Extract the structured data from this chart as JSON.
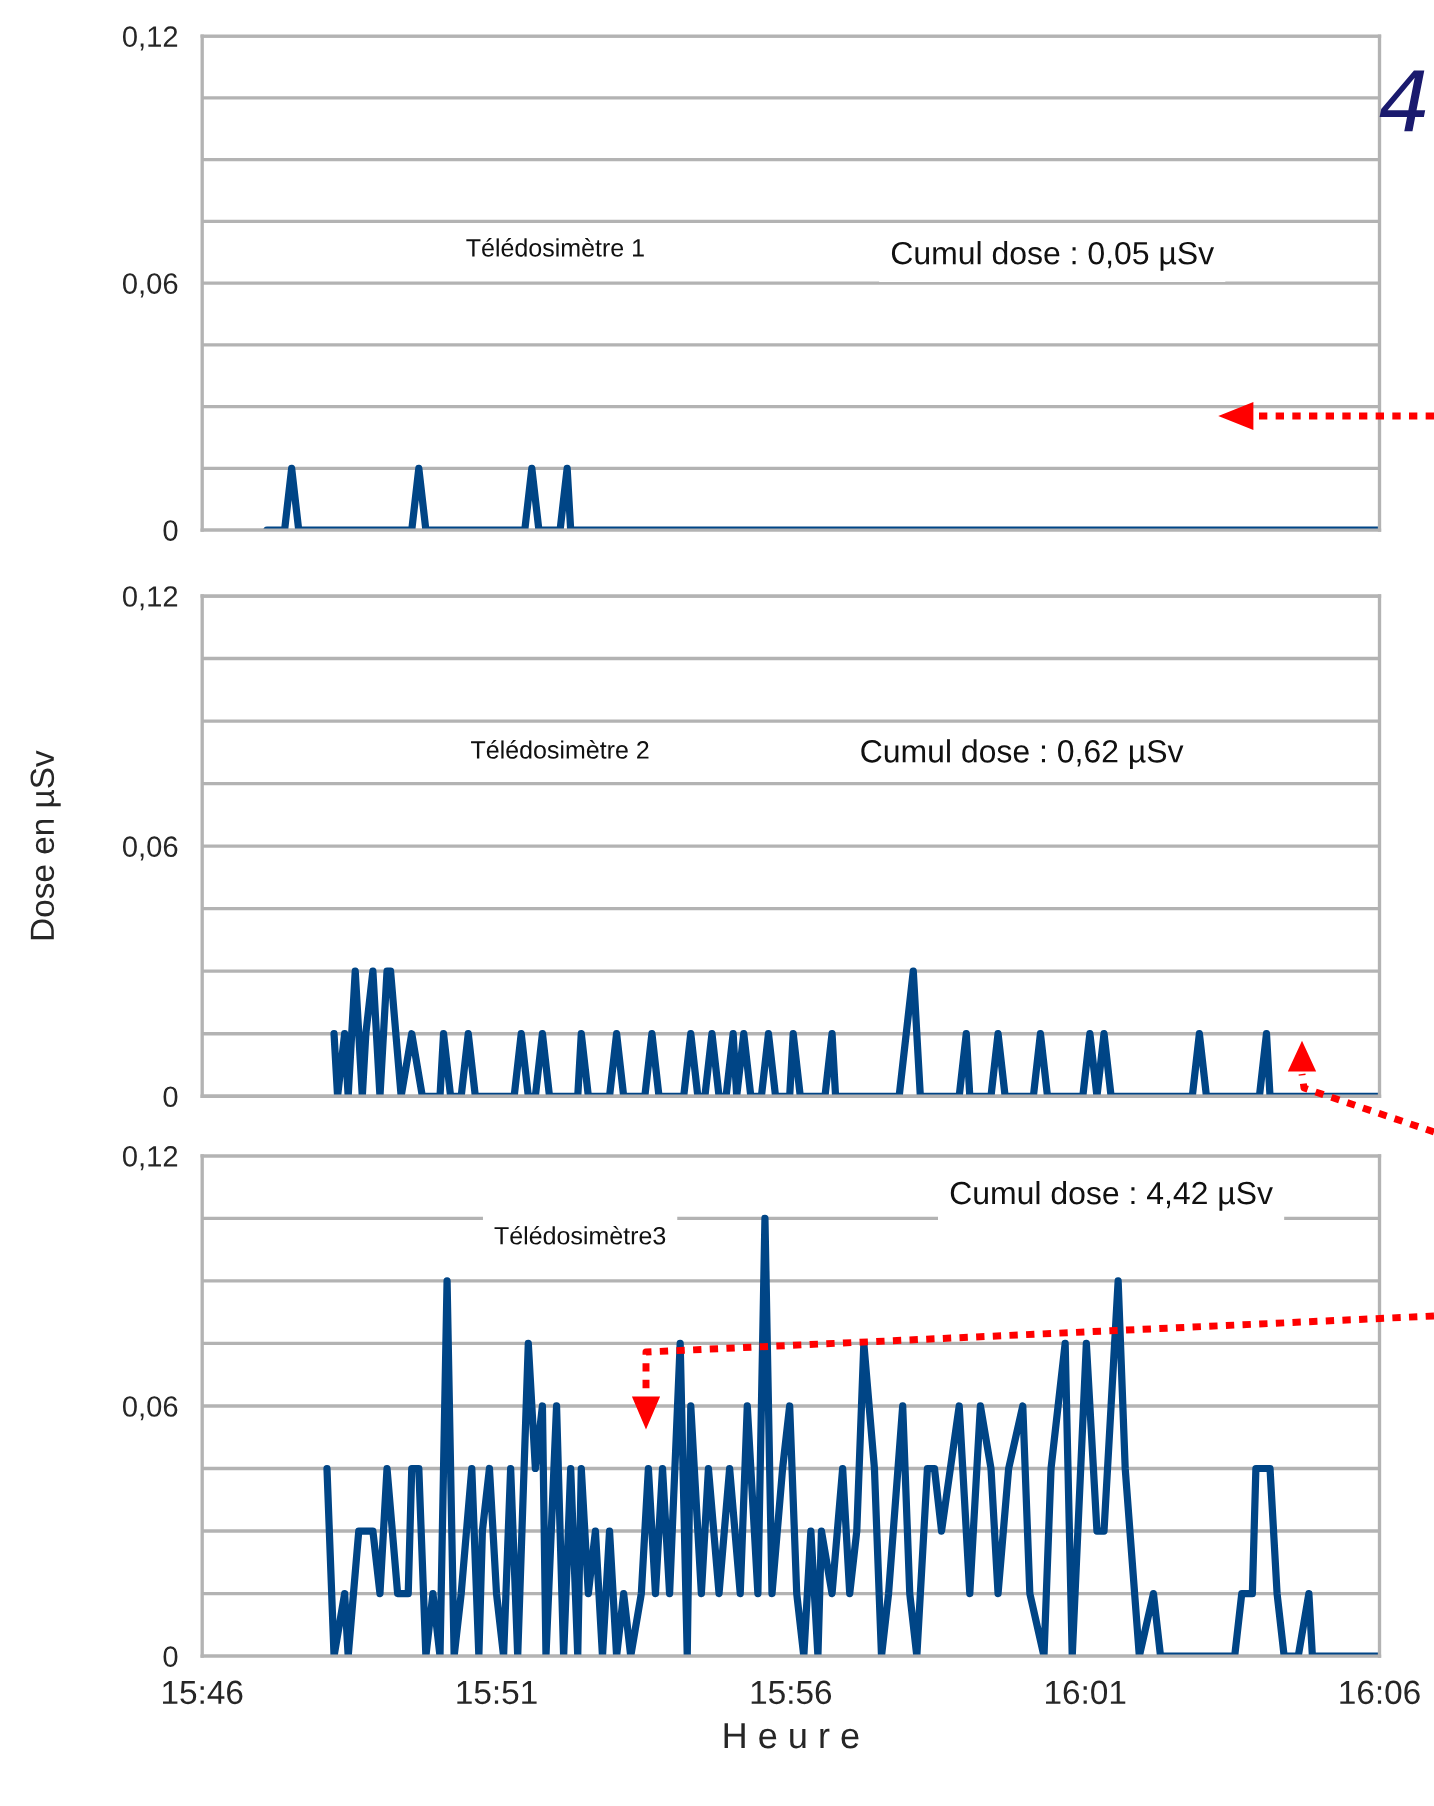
{
  "chart_data": [
    {
      "type": "line",
      "line_style": "solid",
      "grid": "y",
      "tick_labels": "y",
      "xlim": [
        15.76667,
        16.1
      ],
      "ylim": [
        0,
        0.12
      ],
      "yticks": [
        {
          "value": 0,
          "label": "0"
        },
        {
          "value": 0.015,
          "label": null
        },
        {
          "value": 0.03,
          "label": null
        },
        {
          "value": 0.045,
          "label": null
        },
        {
          "value": 0.06,
          "label": "0,06"
        },
        {
          "value": 0.075,
          "label": null
        },
        {
          "value": 0.09,
          "label": null
        },
        {
          "value": 0.105,
          "label": null
        },
        {
          "value": 0.12,
          "label": "0,12"
        }
      ],
      "annotations": [
        "Télédosimètre 1",
        "Cumul dose : 0,05 µSv",
        "4"
      ],
      "xticks": [
        {
          "value": 15.76667,
          "label": null
        },
        {
          "value": 15.85,
          "label": null
        },
        {
          "value": 15.93333,
          "label": null
        },
        {
          "value": 16.01667,
          "label": null
        },
        {
          "value": 16.1,
          "label": null
        }
      ],
      "x": [
        15.785,
        15.79,
        15.792,
        15.794,
        15.826,
        15.828,
        15.83,
        15.858,
        15.86,
        15.862,
        15.868,
        15.87,
        15.871,
        16.1
      ],
      "series": [
        {
          "color": "#004586",
          "values": [
            0,
            0,
            0.015,
            0,
            0,
            0.015,
            0,
            0,
            0.015,
            0,
            0,
            0.015,
            0,
            0
          ]
        }
      ]
    },
    {
      "type": "line",
      "line_style": "solid",
      "grid": "y",
      "tick_labels": "y",
      "ylabel": "Dose en µSv",
      "xlim": [
        15.76667,
        16.1
      ],
      "ylim": [
        0,
        0.12
      ],
      "yticks": [
        {
          "value": 0,
          "label": "0"
        },
        {
          "value": 0.015,
          "label": null
        },
        {
          "value": 0.03,
          "label": null
        },
        {
          "value": 0.045,
          "label": null
        },
        {
          "value": 0.06,
          "label": "0,06"
        },
        {
          "value": 0.075,
          "label": null
        },
        {
          "value": 0.09,
          "label": null
        },
        {
          "value": 0.105,
          "label": null
        },
        {
          "value": 0.12,
          "label": "0,12"
        }
      ],
      "annotations": [
        "Télédosimètre 2",
        "Cumul dose : 0,62 µSv"
      ],
      "xticks": [
        {
          "value": 15.76667,
          "label": null
        },
        {
          "value": 15.85,
          "label": null
        },
        {
          "value": 15.93333,
          "label": null
        },
        {
          "value": 16.01667,
          "label": null
        },
        {
          "value": 16.1,
          "label": null
        }
      ],
      "x": [
        15.804,
        15.805,
        15.807,
        15.808,
        15.81,
        15.812,
        15.813,
        15.815,
        15.817,
        15.819,
        15.82,
        15.823,
        15.826,
        15.829,
        15.834,
        15.835,
        15.837,
        15.84,
        15.842,
        15.844,
        15.855,
        15.857,
        15.859,
        15.861,
        15.863,
        15.865,
        15.873,
        15.874,
        15.876,
        15.882,
        15.884,
        15.886,
        15.892,
        15.894,
        15.896,
        15.903,
        15.905,
        15.907,
        15.909,
        15.911,
        15.913,
        15.915,
        15.917,
        15.918,
        15.92,
        15.922,
        15.925,
        15.927,
        15.929,
        15.933,
        15.934,
        15.936,
        15.943,
        15.945,
        15.946,
        15.964,
        15.966,
        15.968,
        15.97,
        15.981,
        15.983,
        15.984,
        15.99,
        15.992,
        15.994,
        16.002,
        16.004,
        16.006,
        16.016,
        16.018,
        16.02,
        16.022,
        16.024,
        16.047,
        16.049,
        16.051,
        16.066,
        16.068,
        16.069,
        16.1
      ],
      "series": [
        {
          "color": "#004586",
          "values": [
            0.015,
            0,
            0.015,
            0,
            0.03,
            0,
            0.015,
            0.03,
            0,
            0.03,
            0.03,
            0,
            0.015,
            0,
            0,
            0.015,
            0,
            0,
            0.015,
            0,
            0,
            0.015,
            0,
            0,
            0.015,
            0,
            0,
            0.015,
            0,
            0,
            0.015,
            0,
            0,
            0.015,
            0,
            0,
            0.015,
            0,
            0,
            0.015,
            0,
            0,
            0.015,
            0,
            0.015,
            0,
            0,
            0.015,
            0,
            0,
            0.015,
            0,
            0,
            0.015,
            0,
            0,
            0.015,
            0.03,
            0,
            0,
            0.015,
            0,
            0,
            0.015,
            0,
            0,
            0.015,
            0,
            0,
            0.015,
            0,
            0.015,
            0,
            0,
            0.015,
            0,
            0,
            0.015,
            0,
            0
          ]
        }
      ]
    },
    {
      "type": "line",
      "line_style": "solid",
      "grid": "y",
      "xlabel": "H e u r e",
      "xlim": [
        15.76667,
        16.1
      ],
      "ylim": [
        0,
        0.12
      ],
      "xticks": [
        {
          "value": 15.76667,
          "label": "15:46"
        },
        {
          "value": 15.85,
          "label": "15:51"
        },
        {
          "value": 15.93333,
          "label": "15:56"
        },
        {
          "value": 16.01667,
          "label": "16:01"
        },
        {
          "value": 16.1,
          "label": "16:06"
        }
      ],
      "yticks": [
        {
          "value": 0,
          "label": "0"
        },
        {
          "value": 0.015,
          "label": null
        },
        {
          "value": 0.03,
          "label": null
        },
        {
          "value": 0.045,
          "label": null
        },
        {
          "value": 0.06,
          "label": "0,06"
        },
        {
          "value": 0.075,
          "label": null
        },
        {
          "value": 0.09,
          "label": null
        },
        {
          "value": 0.105,
          "label": null
        },
        {
          "value": 0.12,
          "label": "0,12"
        }
      ],
      "annotations": [
        "Cumul dose : 4,42 µSv",
        "Télédosimètre3"
      ],
      "x": [
        15.802,
        15.804,
        15.807,
        15.808,
        15.811,
        15.815,
        15.817,
        15.819,
        15.822,
        15.825,
        15.826,
        15.828,
        15.83,
        15.832,
        15.834,
        15.836,
        15.838,
        15.84,
        15.843,
        15.845,
        15.846,
        15.848,
        15.85,
        15.852,
        15.854,
        15.856,
        15.859,
        15.861,
        15.863,
        15.864,
        15.867,
        15.869,
        15.871,
        15.873,
        15.874,
        15.876,
        15.878,
        15.88,
        15.882,
        15.884,
        15.886,
        15.888,
        15.891,
        15.893,
        15.895,
        15.897,
        15.899,
        15.902,
        15.904,
        15.905,
        15.908,
        15.91,
        15.913,
        15.916,
        15.919,
        15.921,
        15.924,
        15.926,
        15.928,
        15.931,
        15.933,
        15.935,
        15.937,
        15.939,
        15.941,
        15.942,
        15.945,
        15.948,
        15.95,
        15.952,
        15.954,
        15.957,
        15.959,
        15.961,
        15.965,
        15.967,
        15.969,
        15.972,
        15.974,
        15.976,
        15.981,
        15.984,
        15.987,
        15.99,
        15.992,
        15.995,
        15.999,
        16.001,
        16.005,
        16.007,
        16.011,
        16.013,
        16.017,
        16.02,
        16.022,
        16.026,
        16.028,
        16.032,
        16.036,
        16.038,
        16.059,
        16.061,
        16.064,
        16.065,
        16.069,
        16.071,
        16.073,
        16.077,
        16.08,
        16.081,
        16.1
      ],
      "series": [
        {
          "color": "#004586",
          "values": [
            0.045,
            0,
            0.015,
            0,
            0.03,
            0.03,
            0.015,
            0.045,
            0.015,
            0.015,
            0.045,
            0.045,
            0,
            0.015,
            0,
            0.09,
            0,
            0.015,
            0.045,
            0,
            0.03,
            0.045,
            0.015,
            0,
            0.045,
            0,
            0.075,
            0.045,
            0.06,
            0,
            0.06,
            0,
            0.045,
            0,
            0.045,
            0.015,
            0.03,
            0,
            0.03,
            0,
            0.015,
            0,
            0.015,
            0.045,
            0.015,
            0.045,
            0.015,
            0.075,
            0,
            0.06,
            0.015,
            0.045,
            0.015,
            0.045,
            0.015,
            0.06,
            0.015,
            0.105,
            0.015,
            0.045,
            0.06,
            0.015,
            0,
            0.03,
            0,
            0.03,
            0.015,
            0.045,
            0.015,
            0.03,
            0.075,
            0.045,
            0,
            0.015,
            0.06,
            0.015,
            0,
            0.045,
            0.045,
            0.03,
            0.06,
            0.015,
            0.06,
            0.045,
            0.015,
            0.045,
            0.06,
            0.015,
            0,
            0.045,
            0.075,
            0,
            0.075,
            0.03,
            0.03,
            0.09,
            0.045,
            0,
            0.015,
            0,
            0,
            0.015,
            0.015,
            0.045,
            0.045,
            0.015,
            0,
            0,
            0.015,
            0,
            0
          ]
        }
      ]
    }
  ]
}
